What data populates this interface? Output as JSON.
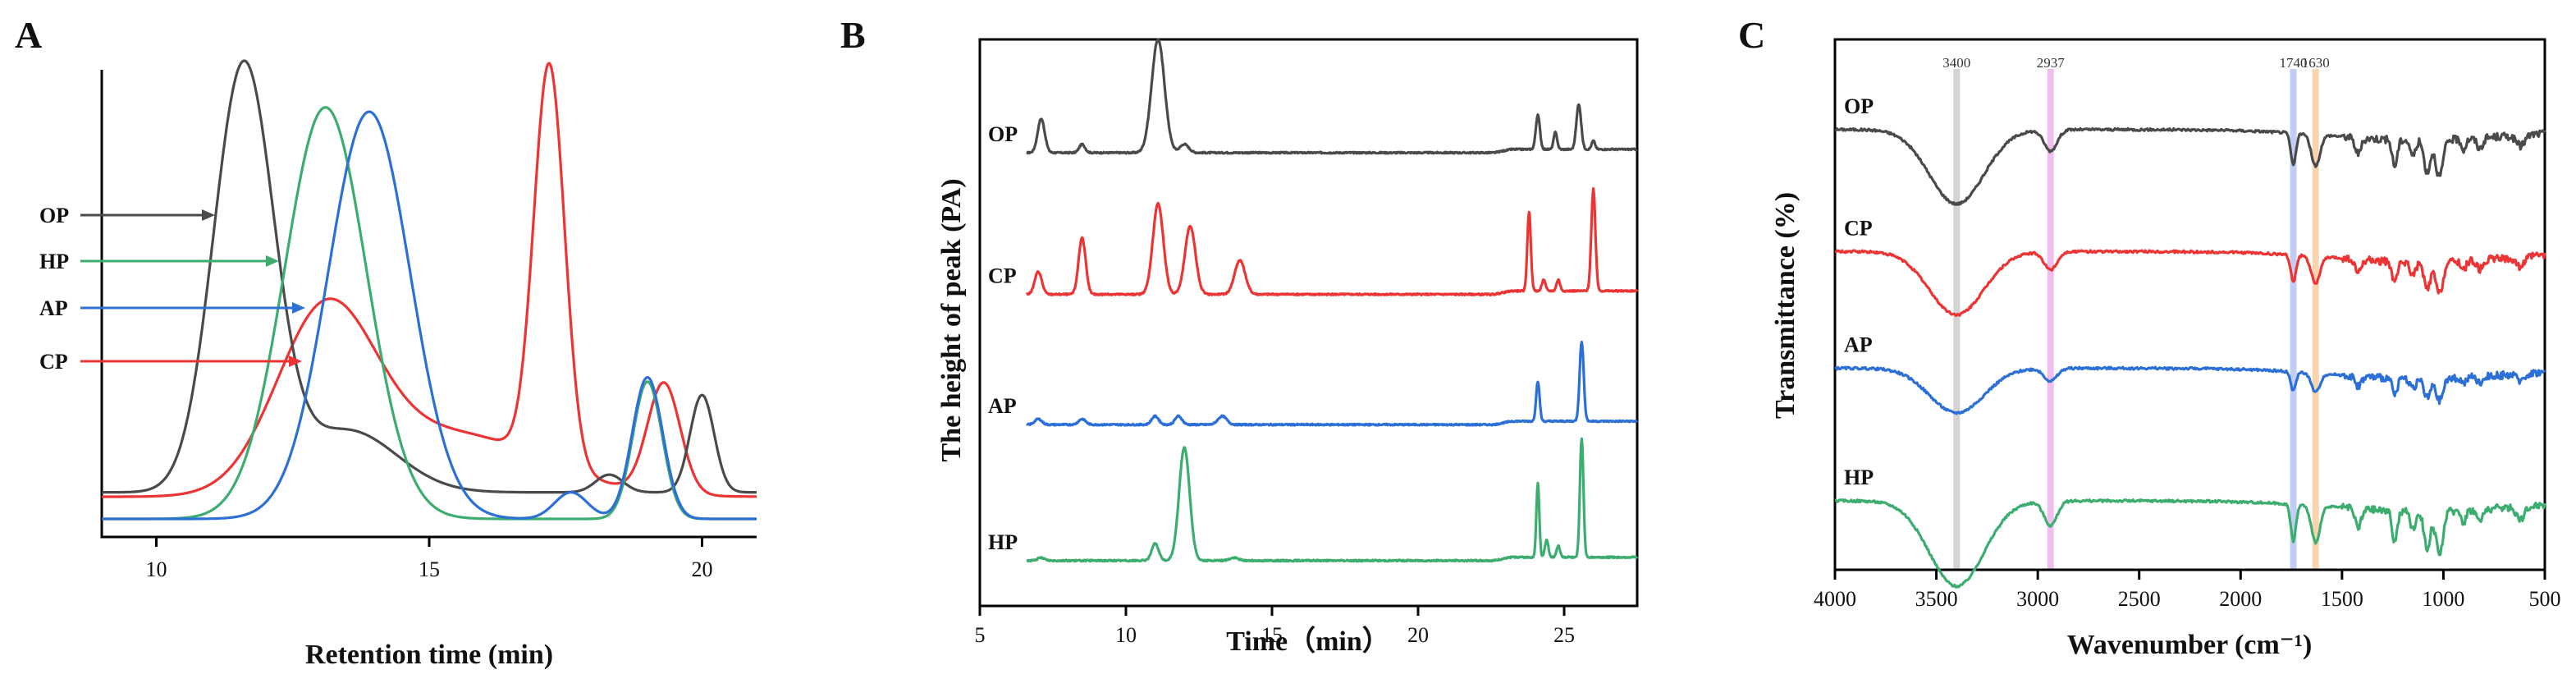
{
  "colors": {
    "OP": "#4a4a4a",
    "HP": "#3cad6e",
    "AP": "#2c6fd6",
    "CP": "#ec3434",
    "band_3400": "#cfcfcf",
    "band_2937": "#f0b6f0",
    "band_1740": "#b9c9f4",
    "band_1630": "#f8cfa4"
  },
  "chart_data": [
    {
      "panel_label": "A",
      "type": "line",
      "xlabel": "Retention time (min)",
      "ylabel": "",
      "xlim": [
        9,
        21
      ],
      "ylim": [
        0,
        100
      ],
      "xticks": [
        "10",
        "15",
        "20"
      ],
      "series": [
        {
          "name": "OP",
          "legend": "OP",
          "peaks": [
            [
              11.6,
              96,
              0.55
            ],
            [
              13.5,
              14,
              0.9
            ],
            [
              18.3,
              4,
              0.25
            ],
            [
              20.0,
              22,
              0.22
            ]
          ],
          "baseline": 6
        },
        {
          "name": "HP",
          "legend": "HP",
          "peaks": [
            [
              13.1,
              93,
              0.75
            ],
            [
              19.0,
              31,
              0.27
            ]
          ],
          "baseline": 0
        },
        {
          "name": "AP",
          "legend": "AP",
          "peaks": [
            [
              13.9,
              92,
              0.75
            ],
            [
              17.6,
              6,
              0.3
            ],
            [
              19.0,
              32,
              0.28
            ]
          ],
          "baseline": 0
        },
        {
          "name": "CP",
          "legend": "CP",
          "peaks": [
            [
              13.1,
              40,
              0.9
            ],
            [
              15.5,
              14,
              1.6
            ],
            [
              17.2,
              90,
              0.28
            ],
            [
              19.3,
              25,
              0.3
            ]
          ],
          "baseline": 5
        }
      ]
    },
    {
      "panel_label": "B",
      "type": "line",
      "xlabel": "Time（min）",
      "ylabel": "The height of peak (PA)",
      "xlim": [
        5,
        27.5
      ],
      "ylim": [
        0,
        100
      ],
      "xticks": [
        "5",
        "10",
        "15",
        "20",
        "25"
      ],
      "series": [
        {
          "name": "OP",
          "legend": "OP",
          "offset": 80,
          "peaks": [
            [
              7.1,
              6,
              0.12
            ],
            [
              8.5,
              1.5,
              0.1
            ],
            [
              11.1,
              20,
              0.22
            ],
            [
              12.0,
              1.5,
              0.15
            ],
            [
              24.1,
              6,
              0.07
            ],
            [
              24.7,
              3,
              0.06
            ],
            [
              25.5,
              8,
              0.08
            ],
            [
              26.0,
              1.5,
              0.06
            ]
          ]
        },
        {
          "name": "CP",
          "legend": "CP",
          "offset": 55,
          "peaks": [
            [
              7.0,
              4,
              0.12
            ],
            [
              8.5,
              10,
              0.12
            ],
            [
              11.1,
              16,
              0.18
            ],
            [
              12.2,
              12,
              0.18
            ],
            [
              13.9,
              6,
              0.18
            ],
            [
              23.8,
              14,
              0.06
            ],
            [
              24.3,
              2,
              0.06
            ],
            [
              24.8,
              2,
              0.06
            ],
            [
              26.0,
              18,
              0.07
            ]
          ]
        },
        {
          "name": "AP",
          "legend": "AP",
          "offset": 32,
          "peaks": [
            [
              7.0,
              1,
              0.12
            ],
            [
              8.5,
              1,
              0.12
            ],
            [
              11.0,
              1.5,
              0.12
            ],
            [
              11.8,
              1.5,
              0.12
            ],
            [
              13.3,
              1.5,
              0.15
            ],
            [
              24.1,
              7,
              0.06
            ],
            [
              25.6,
              14,
              0.07
            ]
          ]
        },
        {
          "name": "HP",
          "legend": "HP",
          "offset": 8,
          "peaks": [
            [
              7.1,
              0.5,
              0.12
            ],
            [
              11.0,
              3,
              0.12
            ],
            [
              12.0,
              20,
              0.18
            ],
            [
              13.7,
              0.5,
              0.15
            ],
            [
              24.1,
              13,
              0.05
            ],
            [
              24.4,
              3,
              0.06
            ],
            [
              24.8,
              2,
              0.06
            ],
            [
              25.6,
              21,
              0.06
            ]
          ]
        }
      ]
    },
    {
      "panel_label": "C",
      "type": "line",
      "xlabel": "Wavenumber (cm⁻¹)",
      "ylabel": "Transmittance (%)",
      "xlim": [
        4000,
        500
      ],
      "ylim": [
        0,
        100
      ],
      "xticks": [
        "4000",
        "3500",
        "3000",
        "2500",
        "2000",
        "1500",
        "1000",
        "500"
      ],
      "bands": [
        {
          "wavenumber": 3400,
          "label": "3400"
        },
        {
          "wavenumber": 2937,
          "label": "2937"
        },
        {
          "wavenumber": 1740,
          "label": "1740"
        },
        {
          "wavenumber": 1630,
          "label": "1630"
        }
      ],
      "series": [
        {
          "name": "OP",
          "legend": "OP",
          "offset": 83
        },
        {
          "name": "CP",
          "legend": "CP",
          "offset": 60
        },
        {
          "name": "AP",
          "legend": "AP",
          "offset": 38
        },
        {
          "name": "HP",
          "legend": "HP",
          "offset": 13
        }
      ]
    }
  ]
}
